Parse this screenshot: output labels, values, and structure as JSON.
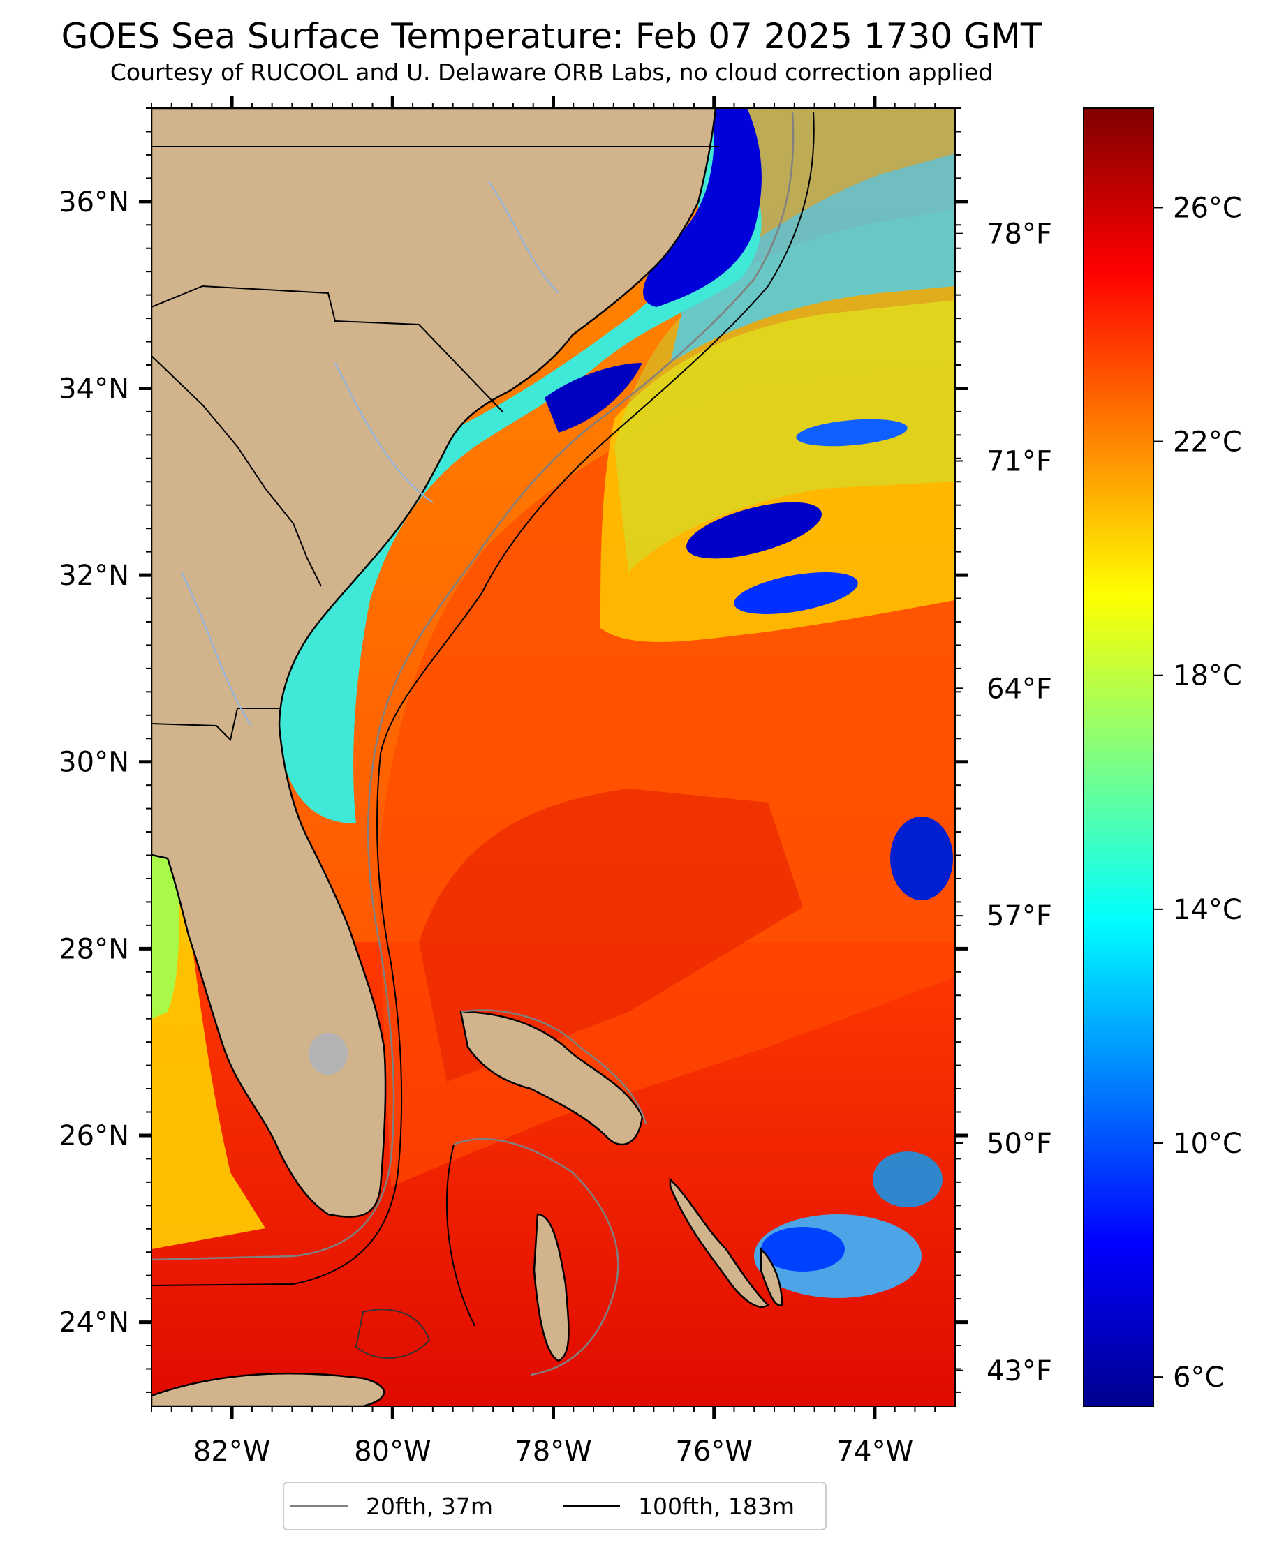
{
  "title": "GOES Sea Surface Temperature: Feb 07 2025 1730 GMT",
  "subtitle": "Courtesy of RUCOOL and U. Delaware ORB Labs, no cloud correction applied",
  "map": {
    "lon_range": [
      -83.0,
      -73.0
    ],
    "lat_range": [
      23.1,
      37.0
    ],
    "lon_ticks": [
      {
        "value": -82,
        "label": "82°W"
      },
      {
        "value": -80,
        "label": "80°W"
      },
      {
        "value": -78,
        "label": "78°W"
      },
      {
        "value": -76,
        "label": "76°W"
      },
      {
        "value": -74,
        "label": "74°W"
      }
    ],
    "lat_ticks": [
      {
        "value": 24,
        "label": "24°N"
      },
      {
        "value": 26,
        "label": "26°N"
      },
      {
        "value": 28,
        "label": "28°N"
      },
      {
        "value": 30,
        "label": "30°N"
      },
      {
        "value": 32,
        "label": "32°N"
      },
      {
        "value": 34,
        "label": "34°N"
      },
      {
        "value": 36,
        "label": "36°N"
      }
    ],
    "fahrenheit_ticks": [
      "78°F",
      "71°F",
      "64°F",
      "57°F",
      "50°F",
      "43°F"
    ],
    "colors": {
      "land": "#d2b48c",
      "lake": "#b4b4b4",
      "river": "#8fb4e6",
      "isobath_20": "#808080",
      "isobath_100": "#000000"
    }
  },
  "colorbar": {
    "unit": "°C",
    "range": [
      5.5,
      27.7
    ],
    "ticks": [
      "26°C",
      "22°C",
      "18°C",
      "14°C",
      "10°C",
      "6°C"
    ],
    "colormap": "jet"
  },
  "legend": {
    "items": [
      {
        "label": "20fth, 37m",
        "color": "#808080"
      },
      {
        "label": "100fth, 183m",
        "color": "#000000"
      }
    ]
  }
}
